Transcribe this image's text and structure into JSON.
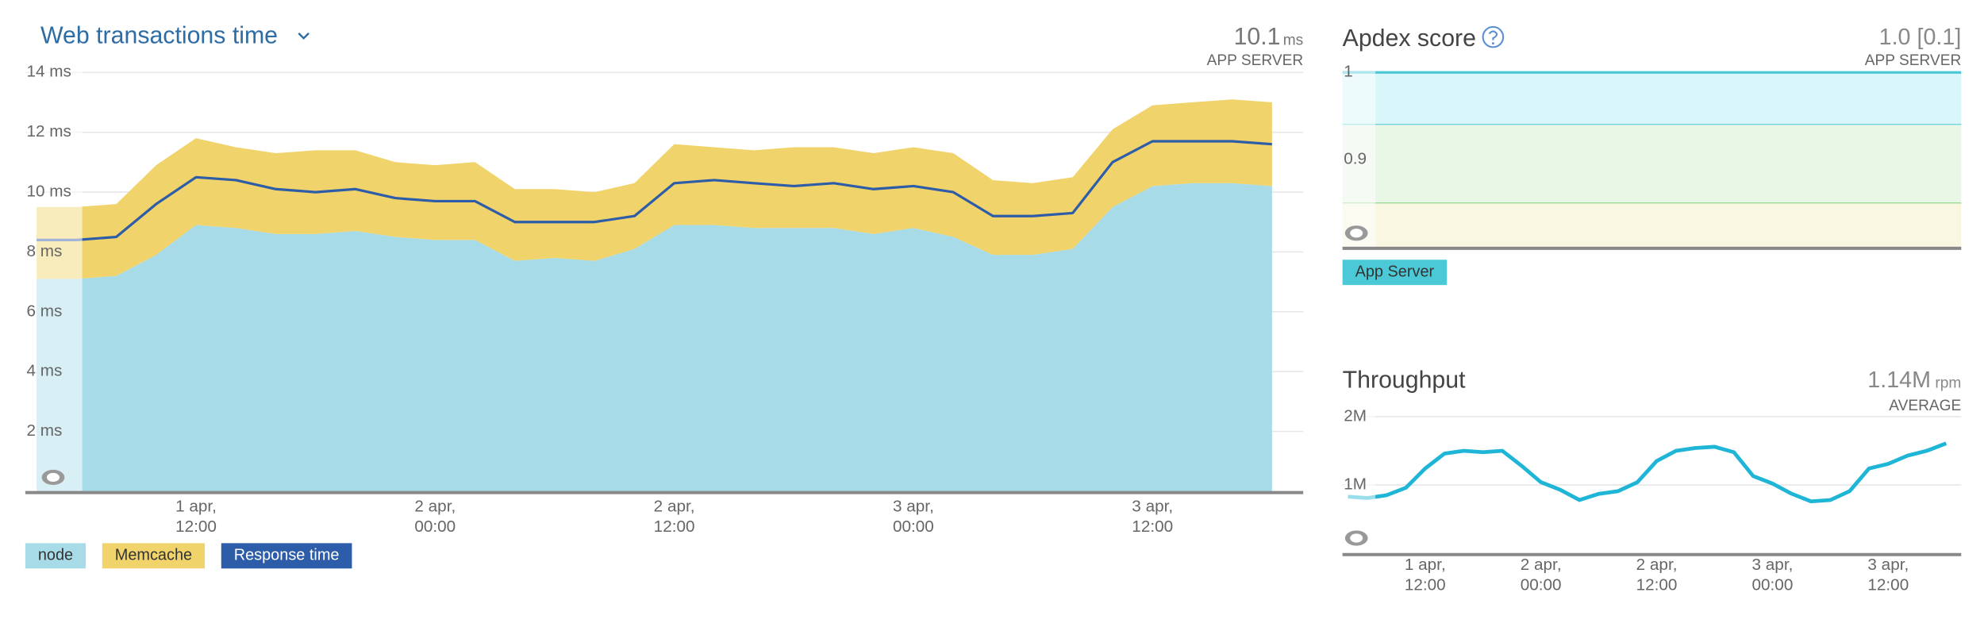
{
  "chart_data": [
    {
      "type": "stacked_area",
      "title": "Web transactions time",
      "summary": {
        "value": 10.1,
        "unit": "ms",
        "label": "APP SERVER"
      },
      "xlim": [
        "1 apr, 03:26",
        "3 apr, 19:34"
      ],
      "xticks": [
        "1 apr, 12:00",
        "2 apr, 00:00",
        "2 apr, 12:00",
        "3 apr, 00:00",
        "3 apr, 12:00"
      ],
      "ylim": [
        0,
        14
      ],
      "yticks": [
        {
          "value": 2,
          "label": "2 ms"
        },
        {
          "value": 4,
          "label": "4 ms"
        },
        {
          "value": 6,
          "label": "6 ms"
        },
        {
          "value": 8,
          "label": "8 ms"
        },
        {
          "value": 10,
          "label": "10 ms"
        },
        {
          "value": 12,
          "label": "12 ms"
        },
        {
          "value": 14,
          "label": "14 ms"
        }
      ],
      "grid": true,
      "x": [
        "1 apr, 04:00",
        "1 apr, 06:00",
        "1 apr, 08:00",
        "1 apr, 10:00",
        "1 apr, 12:00",
        "1 apr, 14:00",
        "1 apr, 16:00",
        "1 apr, 18:00",
        "1 apr, 20:00",
        "1 apr, 22:00",
        "2 apr, 00:00",
        "2 apr, 02:00",
        "2 apr, 04:00",
        "2 apr, 06:00",
        "2 apr, 08:00",
        "2 apr, 10:00",
        "2 apr, 12:00",
        "2 apr, 14:00",
        "2 apr, 16:00",
        "2 apr, 18:00",
        "2 apr, 20:00",
        "2 apr, 22:00",
        "3 apr, 00:00",
        "3 apr, 02:00",
        "3 apr, 04:00",
        "3 apr, 06:00",
        "3 apr, 08:00",
        "3 apr, 10:00",
        "3 apr, 12:00",
        "3 apr, 14:00",
        "3 apr, 16:00",
        "3 apr, 18:00"
      ],
      "series": [
        {
          "name": "node",
          "kind": "area",
          "color": "#a8dbe8",
          "values": [
            7.1,
            7.1,
            7.2,
            7.9,
            8.9,
            8.8,
            8.6,
            8.6,
            8.7,
            8.5,
            8.4,
            8.4,
            7.7,
            7.8,
            7.7,
            8.1,
            8.9,
            8.9,
            8.8,
            8.8,
            8.8,
            8.6,
            8.8,
            8.5,
            7.9,
            7.9,
            8.1,
            9.5,
            10.2,
            10.3,
            10.3,
            10.2
          ]
        },
        {
          "name": "Memcache",
          "kind": "area",
          "color": "#f0d36b",
          "values": [
            2.4,
            2.4,
            2.4,
            3.0,
            2.9,
            2.7,
            2.7,
            2.8,
            2.7,
            2.5,
            2.5,
            2.6,
            2.4,
            2.3,
            2.3,
            2.2,
            2.7,
            2.6,
            2.6,
            2.7,
            2.7,
            2.7,
            2.7,
            2.8,
            2.5,
            2.4,
            2.4,
            2.6,
            2.7,
            2.7,
            2.8,
            2.8
          ]
        },
        {
          "name": "Response time",
          "kind": "line",
          "color": "#2d5ca8",
          "values": [
            8.4,
            8.4,
            8.5,
            9.6,
            10.5,
            10.4,
            10.1,
            10.0,
            10.1,
            9.8,
            9.7,
            9.7,
            9.0,
            9.0,
            9.0,
            9.2,
            10.3,
            10.4,
            10.3,
            10.2,
            10.3,
            10.1,
            10.2,
            10.0,
            9.2,
            9.2,
            9.3,
            11.0,
            11.7,
            11.7,
            11.7,
            11.6
          ]
        }
      ]
    },
    {
      "type": "line",
      "title": "Apdex score",
      "summary": {
        "value": "1.0 [0.1]",
        "label": "APP SERVER"
      },
      "xlim": [
        "1 apr, 03:26",
        "3 apr, 19:34"
      ],
      "ylim": [
        0.8,
        1
      ],
      "yticks": [
        1,
        0.9
      ],
      "grid": false,
      "bands": [
        {
          "from": 0.94,
          "to": 1,
          "color": "#d9f7fa",
          "line": "#4cc9d6"
        },
        {
          "from": 0.85,
          "to": 0.94,
          "color": "#e9f7e7",
          "line": "#7fd27b"
        },
        {
          "from": 0.8,
          "to": 0.85,
          "color": "#f9f6e1",
          "line": "#f9f6e1"
        }
      ],
      "x": [
        "1 apr, 03:26",
        "3 apr, 19:34"
      ],
      "series": [
        {
          "name": "App Server",
          "kind": "line",
          "color": "#4cc9d6",
          "values": [
            1,
            1
          ]
        }
      ]
    },
    {
      "type": "line",
      "title": "Throughput",
      "summary": {
        "value": "1.14M",
        "unit": "rpm",
        "label": "AVERAGE"
      },
      "xlim": [
        "1 apr, 03:26",
        "3 apr, 19:34"
      ],
      "xticks": [
        "1 apr, 12:00",
        "2 apr, 00:00",
        "2 apr, 12:00",
        "3 apr, 00:00",
        "3 apr, 12:00"
      ],
      "ylim": [
        0,
        2000000
      ],
      "yticks": [
        {
          "value": 1000000,
          "label": "1M"
        },
        {
          "value": 2000000,
          "label": "2M"
        }
      ],
      "grid": true,
      "x": [
        "1 apr, 04:00",
        "1 apr, 06:00",
        "1 apr, 08:00",
        "1 apr, 10:00",
        "1 apr, 12:00",
        "1 apr, 14:00",
        "1 apr, 16:00",
        "1 apr, 18:00",
        "1 apr, 20:00",
        "1 apr, 22:00",
        "2 apr, 00:00",
        "2 apr, 02:00",
        "2 apr, 04:00",
        "2 apr, 06:00",
        "2 apr, 08:00",
        "2 apr, 10:00",
        "2 apr, 12:00",
        "2 apr, 14:00",
        "2 apr, 16:00",
        "2 apr, 18:00",
        "2 apr, 20:00",
        "2 apr, 22:00",
        "3 apr, 00:00",
        "3 apr, 02:00",
        "3 apr, 04:00",
        "3 apr, 06:00",
        "3 apr, 08:00",
        "3 apr, 10:00",
        "3 apr, 12:00",
        "3 apr, 14:00",
        "3 apr, 16:00",
        "3 apr, 18:00"
      ],
      "series": [
        {
          "name": "Throughput",
          "kind": "line",
          "color": "#1fb5d6",
          "values": [
            830000,
            810000,
            850000,
            960000,
            1240000,
            1460000,
            1500000,
            1480000,
            1500000,
            1280000,
            1040000,
            930000,
            780000,
            870000,
            910000,
            1040000,
            1350000,
            1500000,
            1540000,
            1560000,
            1480000,
            1130000,
            1020000,
            870000,
            760000,
            780000,
            910000,
            1240000,
            1310000,
            1430000,
            1500000,
            1610000
          ]
        }
      ]
    }
  ]
}
